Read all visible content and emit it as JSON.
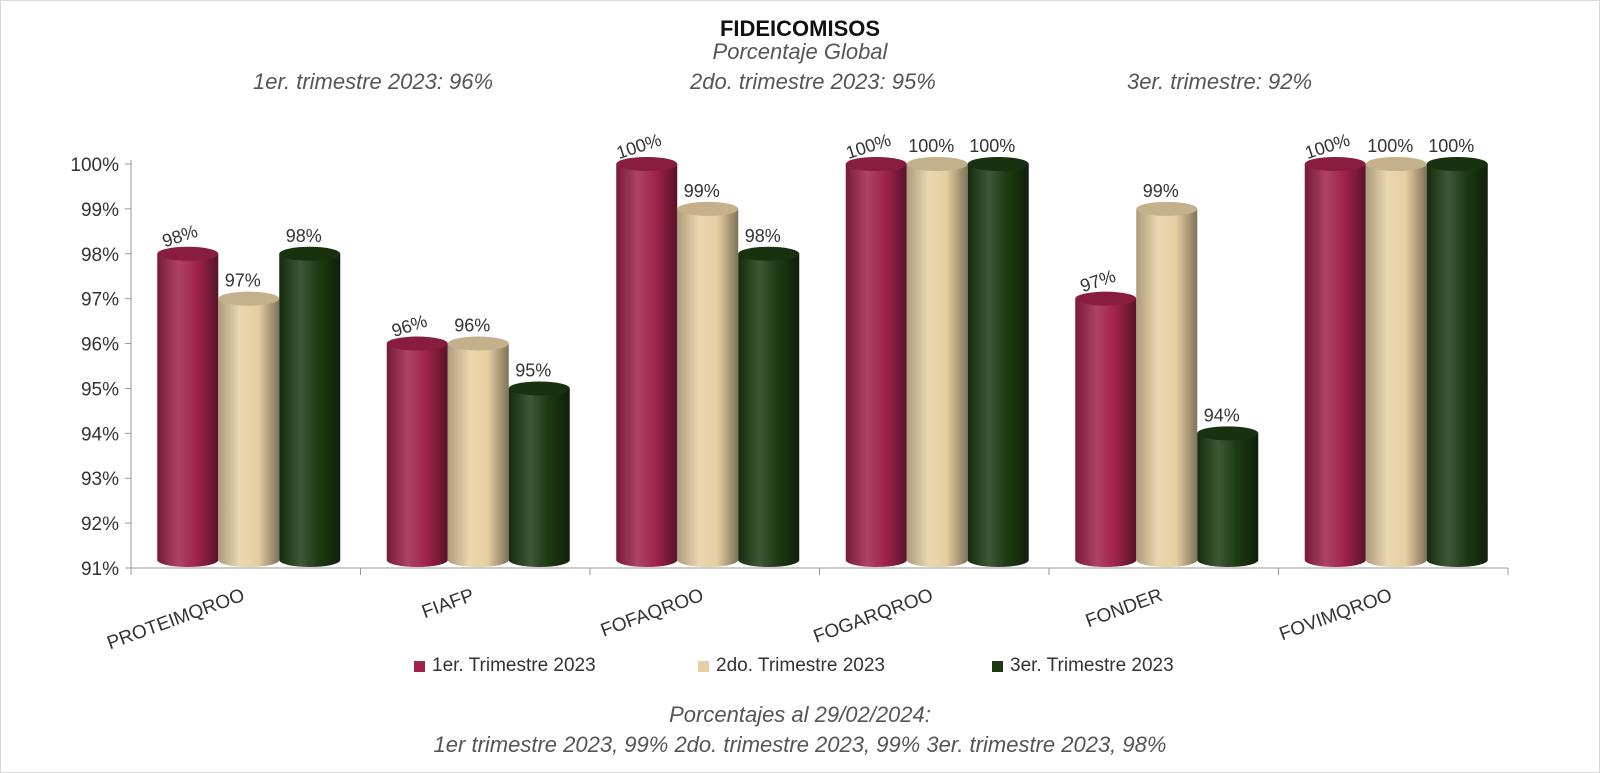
{
  "chart_data": {
    "type": "bar",
    "title": "FIDEICOMISOS",
    "subtitle": "Porcentaje Global",
    "quarter_notes": [
      "1er. trimestre 2023: 96%",
      "2do. trimestre 2023: 95%",
      "3er. trimestre: 92%"
    ],
    "categories": [
      "PROTEIMQROO",
      "FIAFP",
      "FOFAQROO",
      "FOGARQROO",
      "FONDER",
      "FOVIMQROO"
    ],
    "series": [
      {
        "name": "1er. Trimestre 2023",
        "color": "#a0224a",
        "values": [
          98,
          96,
          100,
          100,
          97,
          100
        ],
        "labels": [
          "98%",
          "96%",
          "100%",
          "100%",
          "97%",
          "100%"
        ]
      },
      {
        "name": "2do. Trimestre 2023",
        "color": "#e6cfa2",
        "values": [
          97,
          96,
          99,
          100,
          99,
          100
        ],
        "labels": [
          "97%",
          "96%",
          "99%",
          "100%",
          "99%",
          "100%"
        ]
      },
      {
        "name": "3er. Trimestre 2023",
        "color": "#1c3a12",
        "values": [
          98,
          95,
          98,
          100,
          94,
          100
        ],
        "labels": [
          "98%",
          "95%",
          "98%",
          "100%",
          "94%",
          "100%"
        ]
      }
    ],
    "ylim": [
      91,
      100
    ],
    "yticks": [
      "91%",
      "92%",
      "93%",
      "94%",
      "95%",
      "96%",
      "97%",
      "98%",
      "99%",
      "100%"
    ],
    "legend_position": "bottom",
    "grid": false
  },
  "footer": {
    "line1": "Porcentajes al 29/02/2024:",
    "line2": "1er trimestre  2023,  99%   2do. trimestre 2023, 99%   3er. trimestre 2023, 98%"
  }
}
